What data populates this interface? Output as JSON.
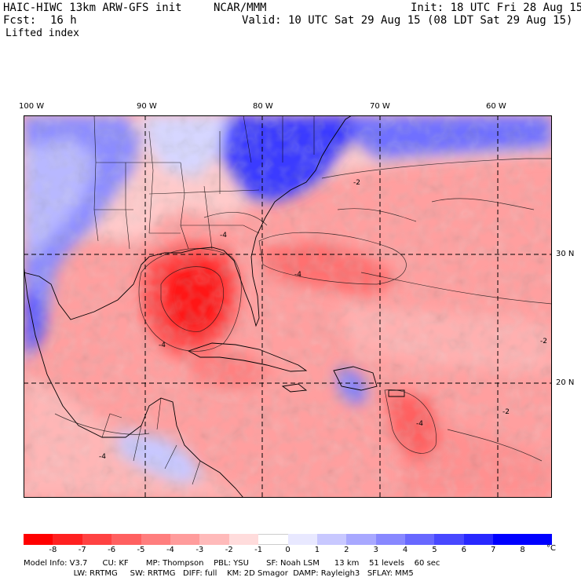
{
  "header": {
    "title_left": "HAIC-HIWC 13km ARW-GFS init",
    "org": "NCAR/MMM",
    "init": "Init: 18 UTC Fri 28 Aug 15",
    "fcst_label": "Fcst:",
    "fcst_value": "16 h",
    "valid": "Valid: 10 UTC Sat 29 Aug 15 (08 LDT Sat 29 Aug 15)",
    "field": "Lifted index"
  },
  "axes": {
    "lon_labels": [
      "100 W",
      "90 W",
      "80 W",
      "70 W",
      "60 W"
    ],
    "lat_labels": [
      "30 N",
      "20 N"
    ]
  },
  "map_overlay": {
    "contour_labels": [
      "-2",
      "-2",
      "-4",
      "-4",
      "-4",
      "-4",
      "-2",
      "-4"
    ]
  },
  "colorbar": {
    "tick_labels": [
      "-8",
      "-7",
      "-6",
      "-5",
      "-4",
      "-3",
      "-2",
      "-1",
      "0",
      "1",
      "2",
      "3",
      "4",
      "5",
      "6",
      "7",
      "8"
    ],
    "unit": "°C",
    "colors": [
      "#ff0000",
      "#ff2020",
      "#ff4242",
      "#ff6060",
      "#ff7e7e",
      "#ff9c9c",
      "#ffbaba",
      "#ffdcdc",
      "#ffffff",
      "#e8e8ff",
      "#c8c8ff",
      "#a8a8ff",
      "#8888ff",
      "#6868ff",
      "#4848ff",
      "#2828ff",
      "#0000ff"
    ]
  },
  "model_info": {
    "line1": "Model Info: V3.7      CU: KF       MP: Thompson    PBL: YSU       SF: Noah LSM      13 km    51 levels    60 sec",
    "line2": "                    LW: RRTMG     SW: RRTMG   DIFF: full    KM: 2D Smagor  DAMP: Rayleigh3   SFLAY: MM5"
  }
}
